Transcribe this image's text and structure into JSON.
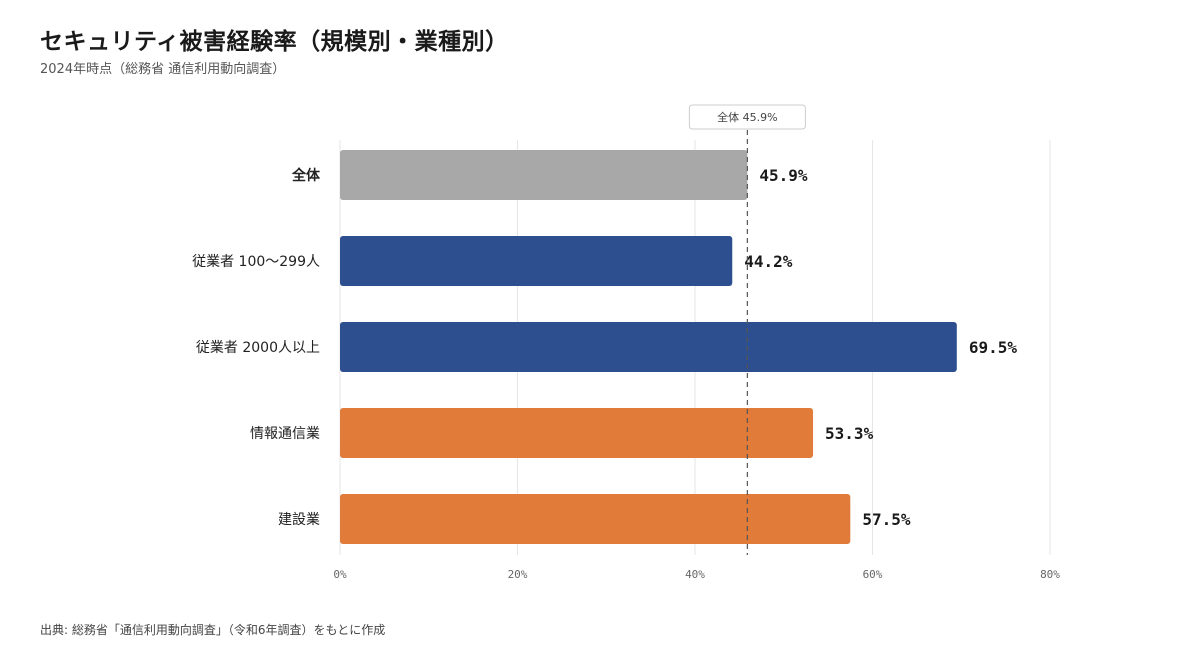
{
  "header": {
    "title": "セキュリティ被害経験率（規模別・業種別）",
    "subtitle": "2024年時点（総務省 通信利用動向調査）"
  },
  "footer": {
    "source": "出典: 総務省「通信利用動向調査」（令和6年調査）をもとに作成"
  },
  "colors": {
    "overall": "#a8a8a8",
    "size": "#2d4f8f",
    "industry": "#e07b39",
    "grid": "#e6e6e6",
    "reference_line": "#555555"
  },
  "chart_data": {
    "type": "bar",
    "orientation": "horizontal",
    "categories": [
      "全体",
      "従業者 100〜299人",
      "従業者 2000人以上",
      "情報通信業",
      "建設業"
    ],
    "values": [
      45.9,
      44.2,
      69.5,
      53.3,
      57.5
    ],
    "value_labels": [
      "45.9%",
      "44.2%",
      "69.5%",
      "53.3%",
      "57.5%"
    ],
    "groups": [
      "overall",
      "size",
      "size",
      "industry",
      "industry"
    ],
    "xlim": [
      0,
      80
    ],
    "xticks": [
      0,
      20,
      40,
      60,
      80
    ],
    "xtick_labels": [
      "0%",
      "20%",
      "40%",
      "60%",
      "80%"
    ],
    "grid": true,
    "reference_line": {
      "value": 45.9,
      "label": "全体 45.9%"
    }
  }
}
